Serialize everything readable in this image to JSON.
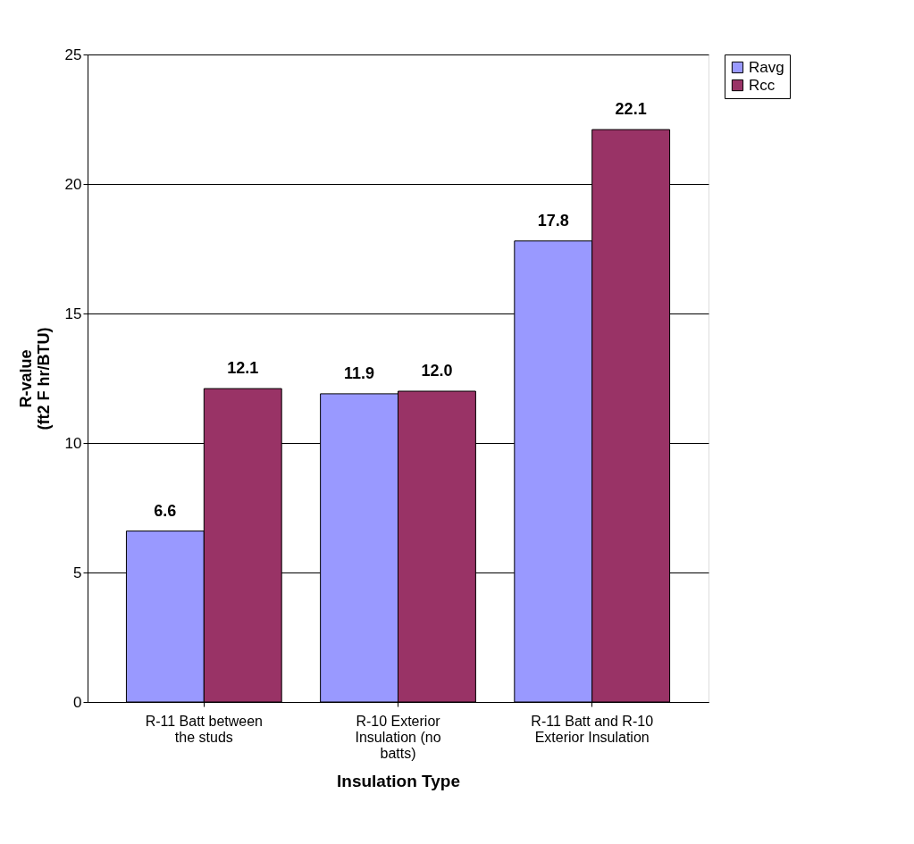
{
  "chart_data": {
    "type": "bar",
    "xlabel": "Insulation Type",
    "ylabel": "R-value\n(ft2 F hr/BTU)",
    "categories": [
      "R-11 Batt between the studs",
      "R-10 Exterior Insulation (no batts)",
      "R-11 Batt and R-10 Exterior Insulation"
    ],
    "series": [
      {
        "name": "Ravg",
        "color": "#9999ff",
        "values": [
          6.6,
          11.9,
          17.8
        ]
      },
      {
        "name": "Rcc",
        "color": "#993366",
        "values": [
          12.1,
          12.0,
          22.1
        ]
      }
    ],
    "value_labels": [
      [
        "6.6",
        "11.9",
        "17.8"
      ],
      [
        "12.1",
        "12.0",
        "22.1"
      ]
    ],
    "ylim": [
      0,
      25
    ],
    "yticks": [
      0,
      5,
      10,
      15,
      20,
      25
    ],
    "grid": "y",
    "legend": "right"
  }
}
